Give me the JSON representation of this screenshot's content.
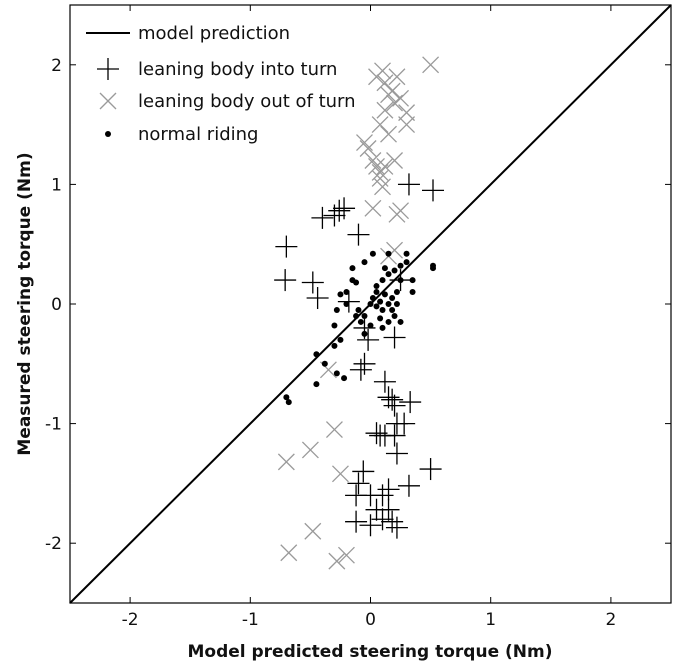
{
  "chart_data": {
    "type": "scatter",
    "xlabel": "Model predicted steering torque (Nm)",
    "ylabel": "Measured steering torque (Nm)",
    "xlim": [
      -2.5,
      2.5
    ],
    "ylim": [
      -2.5,
      2.5
    ],
    "xticks": [
      -2,
      -1,
      0,
      1,
      2
    ],
    "yticks": [
      -2,
      -1,
      0,
      1,
      2
    ],
    "grid": false,
    "legend_position": "top-left",
    "line": {
      "name": "model prediction",
      "x": [
        -2.5,
        2.5
      ],
      "y": [
        -2.5,
        2.5
      ],
      "color": "#000000"
    },
    "series": [
      {
        "name": "leaning body into turn",
        "marker": "plus",
        "color": "#000000",
        "points": [
          [
            -0.7,
            0.48
          ],
          [
            -0.71,
            0.2
          ],
          [
            -0.48,
            0.18
          ],
          [
            -0.44,
            0.05
          ],
          [
            -0.4,
            0.72
          ],
          [
            -0.3,
            0.74
          ],
          [
            -0.26,
            0.78
          ],
          [
            -0.22,
            0.8
          ],
          [
            -0.1,
            0.58
          ],
          [
            0.32,
            1.0
          ],
          [
            0.52,
            0.95
          ],
          [
            0.25,
            0.2
          ],
          [
            -0.18,
            0.02
          ],
          [
            0.2,
            -0.28
          ],
          [
            -0.05,
            -0.2
          ],
          [
            -0.02,
            -0.3
          ],
          [
            -0.05,
            -0.5
          ],
          [
            -0.08,
            -0.55
          ],
          [
            0.12,
            -0.65
          ],
          [
            0.15,
            -0.78
          ],
          [
            0.18,
            -0.8
          ],
          [
            0.2,
            -0.85
          ],
          [
            0.33,
            -0.82
          ],
          [
            0.28,
            -1.0
          ],
          [
            0.22,
            -1.0
          ],
          [
            0.05,
            -1.08
          ],
          [
            0.08,
            -1.1
          ],
          [
            0.12,
            -1.1
          ],
          [
            0.2,
            -1.1
          ],
          [
            0.22,
            -1.25
          ],
          [
            -0.06,
            -1.4
          ],
          [
            -0.1,
            -1.5
          ],
          [
            -0.12,
            -1.6
          ],
          [
            0.0,
            -1.6
          ],
          [
            0.1,
            -1.6
          ],
          [
            0.15,
            -1.55
          ],
          [
            0.32,
            -1.52
          ],
          [
            0.5,
            -1.38
          ],
          [
            0.05,
            -1.72
          ],
          [
            0.1,
            -1.8
          ],
          [
            0.18,
            -1.82
          ],
          [
            0.22,
            -1.87
          ],
          [
            -0.12,
            -1.82
          ],
          [
            0.15,
            -1.72
          ],
          [
            0.0,
            -1.85
          ]
        ]
      },
      {
        "name": "leaning body out of turn",
        "marker": "cross",
        "color": "#9a9a9a",
        "points": [
          [
            0.05,
            1.9
          ],
          [
            0.1,
            1.95
          ],
          [
            0.12,
            1.85
          ],
          [
            0.15,
            1.75
          ],
          [
            0.18,
            1.78
          ],
          [
            0.22,
            1.9
          ],
          [
            0.2,
            1.68
          ],
          [
            0.25,
            1.72
          ],
          [
            0.3,
            1.6
          ],
          [
            0.12,
            1.62
          ],
          [
            0.08,
            1.5
          ],
          [
            0.3,
            1.5
          ],
          [
            0.5,
            2.0
          ],
          [
            0.15,
            1.42
          ],
          [
            -0.05,
            1.35
          ],
          [
            -0.02,
            1.3
          ],
          [
            0.02,
            1.2
          ],
          [
            0.05,
            1.15
          ],
          [
            0.08,
            1.1
          ],
          [
            0.12,
            1.15
          ],
          [
            0.2,
            1.2
          ],
          [
            0.08,
            1.05
          ],
          [
            0.1,
            0.98
          ],
          [
            0.02,
            0.8
          ],
          [
            0.22,
            0.75
          ],
          [
            0.25,
            0.78
          ],
          [
            0.15,
            0.4
          ],
          [
            0.2,
            0.45
          ],
          [
            -0.3,
            -1.05
          ],
          [
            -0.5,
            -1.22
          ],
          [
            -0.7,
            -1.32
          ],
          [
            -0.25,
            -1.42
          ],
          [
            -0.68,
            -2.08
          ],
          [
            -0.48,
            -1.9
          ],
          [
            -0.28,
            -2.15
          ],
          [
            -0.2,
            -2.1
          ],
          [
            -0.35,
            -0.55
          ]
        ]
      },
      {
        "name": "normal riding",
        "marker": "dot",
        "color": "#000000",
        "points": [
          [
            -0.7,
            -0.78
          ],
          [
            -0.68,
            -0.82
          ],
          [
            -0.45,
            -0.67
          ],
          [
            -0.45,
            -0.42
          ],
          [
            -0.38,
            -0.5
          ],
          [
            -0.3,
            -0.35
          ],
          [
            -0.28,
            -0.58
          ],
          [
            -0.25,
            -0.3
          ],
          [
            -0.22,
            -0.62
          ],
          [
            -0.3,
            -0.18
          ],
          [
            -0.28,
            -0.05
          ],
          [
            -0.2,
            0.0
          ],
          [
            -0.25,
            0.08
          ],
          [
            -0.2,
            0.1
          ],
          [
            -0.15,
            0.2
          ],
          [
            -0.12,
            -0.1
          ],
          [
            -0.08,
            -0.15
          ],
          [
            -0.05,
            -0.1
          ],
          [
            -0.1,
            -0.05
          ],
          [
            0.0,
            0.0
          ],
          [
            0.02,
            0.05
          ],
          [
            0.05,
            0.1
          ],
          [
            0.08,
            0.02
          ],
          [
            0.1,
            -0.05
          ],
          [
            0.12,
            0.08
          ],
          [
            0.15,
            0.0
          ],
          [
            0.18,
            -0.05
          ],
          [
            0.2,
            -0.1
          ],
          [
            0.22,
            0.0
          ],
          [
            0.25,
            -0.15
          ],
          [
            0.18,
            0.05
          ],
          [
            0.22,
            0.1
          ],
          [
            0.05,
            0.15
          ],
          [
            0.1,
            0.2
          ],
          [
            0.15,
            0.25
          ],
          [
            0.12,
            0.3
          ],
          [
            0.2,
            0.28
          ],
          [
            0.25,
            0.32
          ],
          [
            0.3,
            0.35
          ],
          [
            0.3,
            0.42
          ],
          [
            0.35,
            0.2
          ],
          [
            0.35,
            0.1
          ],
          [
            0.52,
            0.3
          ],
          [
            0.52,
            0.32
          ],
          [
            -0.15,
            0.3
          ],
          [
            -0.05,
            0.35
          ],
          [
            0.02,
            0.42
          ],
          [
            0.15,
            0.42
          ],
          [
            -0.05,
            -0.25
          ],
          [
            0.1,
            -0.2
          ],
          [
            0.0,
            -0.18
          ],
          [
            0.08,
            -0.12
          ],
          [
            0.15,
            -0.15
          ],
          [
            -0.12,
            0.18
          ],
          [
            0.05,
            -0.02
          ],
          [
            0.25,
            0.2
          ]
        ]
      }
    ]
  }
}
